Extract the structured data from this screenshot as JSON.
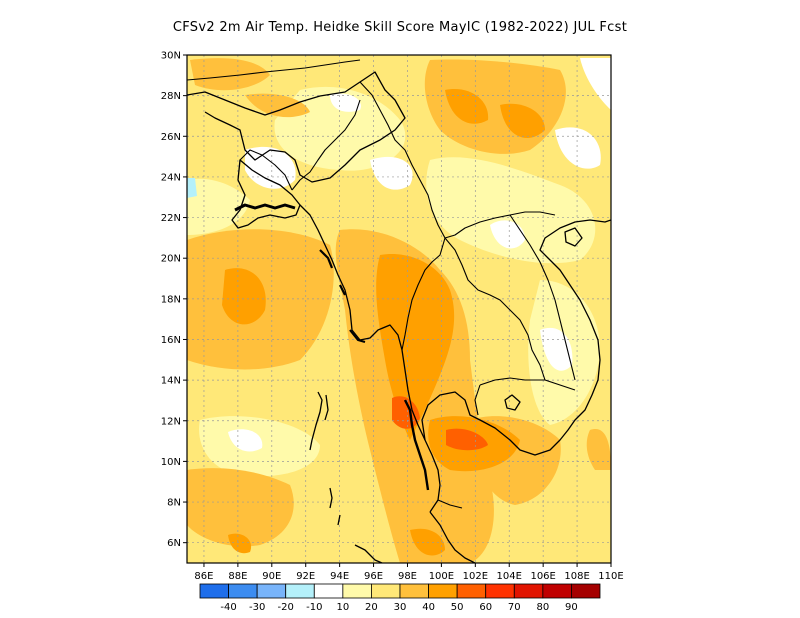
{
  "title": "CFSv2 2m Air Temp. Heidke Skill Score MayIC (1982-2022) JUL Fcst",
  "map": {
    "lon_range": [
      85,
      110
    ],
    "lat_range": [
      5,
      30
    ],
    "lat_ticks": [
      "6N",
      "8N",
      "10N",
      "12N",
      "14N",
      "16N",
      "18N",
      "20N",
      "22N",
      "24N",
      "26N",
      "28N",
      "30N"
    ],
    "lon_ticks": [
      "86E",
      "88E",
      "90E",
      "92E",
      "94E",
      "96E",
      "98E",
      "100E",
      "102E",
      "104E",
      "106E",
      "108E",
      "110E"
    ],
    "gridlines": true
  },
  "legend": {
    "labels": [
      "-40",
      "-30",
      "-20",
      "-10",
      "10",
      "20",
      "30",
      "40",
      "50",
      "60",
      "70",
      "80",
      "90"
    ],
    "colors": [
      "#1e6eeb",
      "#3c8cf0",
      "#78b4fa",
      "#b4f0fa",
      "#ffffff",
      "#fffaaa",
      "#ffe878",
      "#ffc03c",
      "#ffa000",
      "#ff6000",
      "#ff3200",
      "#e11400",
      "#c00000",
      "#a50000"
    ]
  },
  "field": {
    "description_note_colors": {
      "white": "#ffffff",
      "light_yellow": "#fffaaa",
      "yellow": "#ffe878",
      "light_orange": "#ffc03c",
      "orange": "#ffa000",
      "dark_orange": "#ff6000"
    }
  }
}
